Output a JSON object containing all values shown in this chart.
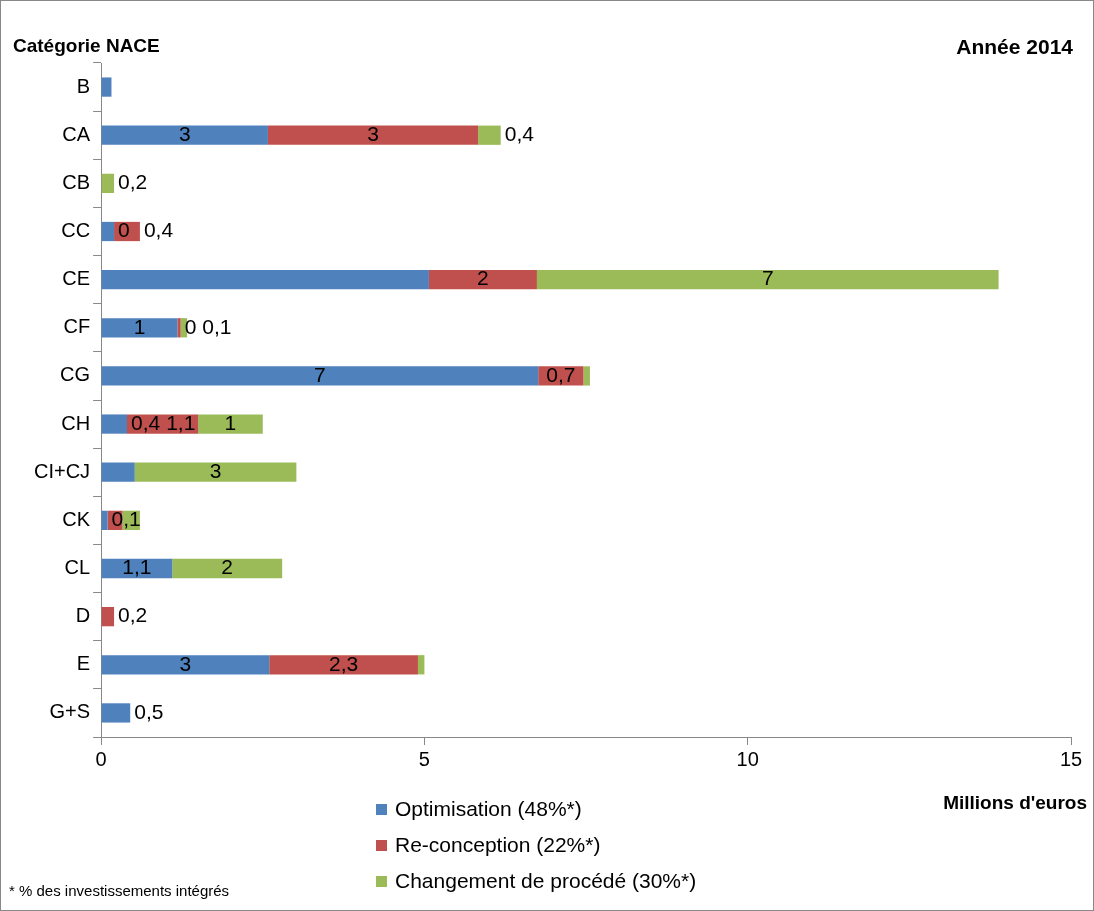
{
  "chart_data": {
    "type": "bar",
    "orientation": "horizontal",
    "stacked": true,
    "title": "Année 2014",
    "ylabel": "Catégorie NACE",
    "xlabel": "Millions d'euros",
    "categories": [
      "B",
      "CA",
      "CB",
      "CC",
      "CE",
      "CF",
      "CG",
      "CH",
      "CI+CJ",
      "CK",
      "CL",
      "D",
      "E",
      "G+S"
    ],
    "series": [
      {
        "name": "Optimisation (48%*)",
        "color": "#4f81bd",
        "values": [
          0.16,
          2.58,
          0,
          0.2,
          5.07,
          1.18,
          6.76,
          0.4,
          0.52,
          0.1,
          1.1,
          0,
          2.6,
          0.45
        ],
        "value_labels": [
          null,
          "3",
          null,
          "0",
          null,
          "1",
          "7",
          "0,4",
          null,
          "0,1",
          "1,1",
          null,
          "3",
          "0,5"
        ]
      },
      {
        "name": "Re-conception (22%*)",
        "color": "#c0504d",
        "values": [
          0,
          3.25,
          0,
          0.4,
          1.67,
          0.05,
          0.7,
          1.1,
          0,
          0.23,
          0,
          0.2,
          2.3,
          0
        ],
        "value_labels": [
          null,
          "3",
          null,
          "0,4",
          "2",
          "0",
          "0,7",
          "1,1",
          null,
          null,
          null,
          "0,2",
          "2,3",
          null
        ]
      },
      {
        "name": "Changement de procédé (30%*)",
        "color": "#9bbb59",
        "values": [
          0,
          0.35,
          0.2,
          0,
          7.14,
          0.1,
          0.1,
          1.0,
          2.5,
          0.27,
          1.7,
          0,
          0.1,
          0
        ],
        "value_labels": [
          null,
          "0,4",
          "0,2",
          null,
          "7",
          "0,1",
          null,
          "1",
          "3",
          null,
          "2",
          null,
          null,
          null
        ]
      }
    ],
    "xlim": [
      0,
      15
    ],
    "xticks": [
      0,
      5,
      10,
      15
    ],
    "grid": false,
    "legend": "bottom",
    "annotations": [
      "* % des  investissements intégrés"
    ]
  }
}
